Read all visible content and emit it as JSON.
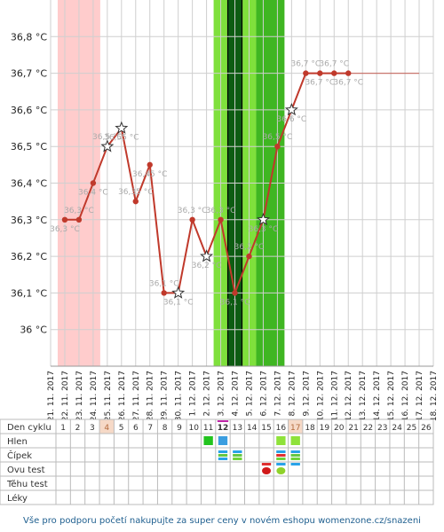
{
  "chart_data": {
    "type": "line",
    "title": "",
    "xlabel": "",
    "ylabel": "",
    "ylim": [
      35.9,
      36.9
    ],
    "y_ticks": [
      {
        "value": 36.0,
        "label": "36 °C"
      },
      {
        "value": 36.1,
        "label": "36,1 °C"
      },
      {
        "value": 36.2,
        "label": "36,2 °C"
      },
      {
        "value": 36.3,
        "label": "36,3 °C"
      },
      {
        "value": 36.4,
        "label": "36,4 °C"
      },
      {
        "value": 36.5,
        "label": "36,5 °C"
      },
      {
        "value": 36.6,
        "label": "36,6 °C"
      },
      {
        "value": 36.7,
        "label": "36,7 °C"
      },
      {
        "value": 36.8,
        "label": "36,8 °C"
      }
    ],
    "x": [
      "21. 11. 2017",
      "22. 11. 2017",
      "23. 11. 2017",
      "24. 11. 2017",
      "25. 11. 2017",
      "26. 11. 2017",
      "27. 11. 2017",
      "28. 11. 2017",
      "29. 11. 2017",
      "30. 11. 2017",
      "1. 12. 2017",
      "2. 12. 2017",
      "3. 12. 2017",
      "4. 12. 2017",
      "5. 12. 2017",
      "6. 12. 2017",
      "7. 12. 2017",
      "8. 12. 2017",
      "9. 12. 2017",
      "10. 12. 2017",
      "11. 12. 2017",
      "12. 12. 2017",
      "13. 12. 2017",
      "14. 12. 2017",
      "15. 12. 2017",
      "16. 12. 2017",
      "17. 12. 2017",
      "18. 12. 2017"
    ],
    "series": [
      {
        "values": [
          null,
          36.3,
          36.3,
          36.4,
          36.5,
          36.55,
          36.35,
          36.45,
          36.1,
          36.1,
          36.3,
          36.2,
          36.3,
          36.1,
          36.2,
          36.3,
          36.5,
          36.6,
          36.7,
          36.7,
          36.7,
          36.7,
          null,
          null,
          null,
          null,
          null,
          null
        ],
        "point_labels": [
          "",
          "36,3 °C",
          "36,3 °C",
          "36,4 °C",
          "36,5 °C",
          "36,55 °C",
          "36,35 °C",
          "36,45 °C",
          "36,1 °C",
          "36,1 °C",
          "36,3 °C",
          "36,2 °C",
          "36,3 °C",
          "36,1 °C",
          "36,2 °C",
          "36,3 °C",
          "36,5 °C",
          "36,6 °C",
          "36,7 °C",
          "36,7 °C",
          "36,7 °C",
          "36,7 °C",
          "",
          "",
          "",
          "",
          "",
          ""
        ],
        "star_points": [
          4,
          5,
          9,
          11,
          15,
          17
        ],
        "color": "#c0392b"
      }
    ],
    "projection_from": 21,
    "projection_to": 26,
    "projection_value": 36.7,
    "bands": [
      {
        "from": 0.5,
        "to": 3.5,
        "color": "#ffcccc"
      },
      {
        "from": 11.5,
        "to": 12.5,
        "color": "#7fe03c"
      },
      {
        "from": 12.5,
        "to": 13.5,
        "color": "#0d5c12"
      },
      {
        "from": 13.5,
        "to": 14.5,
        "color": "#7fe03c"
      },
      {
        "from": 14.5,
        "to": 16.5,
        "color": "#3fb622"
      }
    ],
    "ovulation_lines": [
      12.5,
      13.5
    ]
  },
  "cycle_table": {
    "row_labels": [
      "Den cyklu",
      "Hlen",
      "Čípek",
      "Ovu test",
      "Těhu test",
      "Léky"
    ],
    "days": [
      "1",
      "2",
      "3",
      "4",
      "5",
      "6",
      "7",
      "8",
      "9",
      "10",
      "11",
      "12",
      "13",
      "14",
      "15",
      "16",
      "17",
      "18",
      "19",
      "20",
      "21",
      "22",
      "23",
      "24",
      "25",
      "26"
    ],
    "highlight_days": [
      4,
      17
    ],
    "today_day": 12
  },
  "footer_text": "Vše pro podporu početí nakupujte za super ceny v novém eshopu womenzone.cz/snazeni",
  "colors": {
    "grid": "#cfcfcf",
    "axis_text": "#222222",
    "point_label": "#aaaaaa",
    "footer": "#1f5f8f"
  }
}
